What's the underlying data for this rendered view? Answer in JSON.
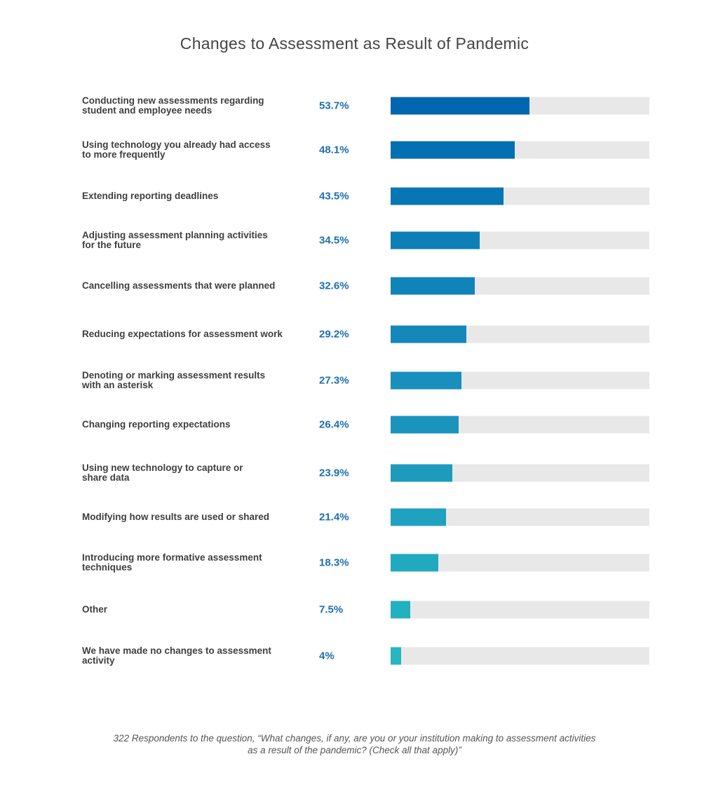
{
  "chart_data": {
    "type": "bar",
    "orientation": "horizontal",
    "title": "Changes to Assessment as Result of Pandemic",
    "xlim": [
      0,
      100
    ],
    "grid": false,
    "categories": [
      [
        "Conducting new assessments regarding",
        "student and employee needs"
      ],
      [
        "Using technology you already had access",
        "to more frequently"
      ],
      [
        "Extending reporting deadlines"
      ],
      [
        "Adjusting assessment planning activities",
        "for the future"
      ],
      [
        "Cancelling assessments that were planned"
      ],
      [
        "Reducing expectations for assessment work"
      ],
      [
        "Denoting or marking assessment results",
        "with an asterisk"
      ],
      [
        "Changing reporting expectations"
      ],
      [
        "Using new technology to capture or",
        "share data"
      ],
      [
        "Modifying how results are used or shared"
      ],
      [
        "Introducing more formative assessment",
        "techniques"
      ],
      [
        "Other"
      ],
      [
        "We have made no changes to assessment",
        "activity"
      ]
    ],
    "values": [
      53.7,
      48.1,
      43.5,
      34.5,
      32.6,
      29.2,
      27.3,
      26.4,
      23.9,
      21.4,
      18.3,
      7.5,
      4
    ],
    "value_labels": [
      "53.7%",
      "48.1%",
      "43.5%",
      "34.5%",
      "32.6%",
      "29.2%",
      "27.3%",
      "26.4%",
      "23.9%",
      "21.4%",
      "18.3%",
      "7.5%",
      "4%"
    ],
    "colors": [
      "#0066b1",
      "#046fb3",
      "#0876b5",
      "#0c7fb7",
      "#1084b9",
      "#1488ba",
      "#188fbc",
      "#1b94bd",
      "#1e9abd",
      "#1fa1bf",
      "#20a9bf",
      "#22b1bf",
      "#26b7bf"
    ],
    "track_color": "#e8e8e8",
    "footnote": [
      "322 Respondents to the question, “What changes, if any, are you or your institution making to assessment activities",
      "as a result of the pandemic? (Check all that apply)”"
    ]
  }
}
